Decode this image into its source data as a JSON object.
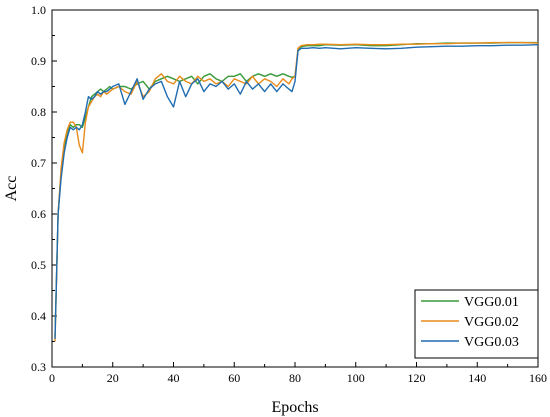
{
  "chart_data": {
    "type": "line",
    "title": "",
    "xlabel": "Epochs",
    "ylabel": "Acc",
    "xlim": [
      0,
      160
    ],
    "ylim": [
      0.3,
      1.0
    ],
    "xticks": [
      "0",
      "20",
      "40",
      "60",
      "80",
      "100",
      "120",
      "140",
      "160"
    ],
    "yticks": [
      "0.3",
      "0.4",
      "0.5",
      "0.6",
      "0.7",
      "0.8",
      "0.9",
      "1.0"
    ],
    "grid": false,
    "legend_position": "bottom-right",
    "x": [
      1,
      2,
      3,
      4,
      5,
      6,
      7,
      8,
      9,
      10,
      11,
      12,
      13,
      14,
      15,
      16,
      17,
      18,
      19,
      20,
      22,
      24,
      26,
      28,
      30,
      32,
      34,
      36,
      38,
      40,
      42,
      44,
      46,
      48,
      50,
      52,
      54,
      56,
      58,
      60,
      62,
      64,
      66,
      68,
      70,
      72,
      74,
      76,
      78,
      79,
      80,
      81,
      82,
      84,
      86,
      88,
      90,
      95,
      100,
      105,
      110,
      115,
      120,
      125,
      130,
      135,
      140,
      145,
      150,
      155,
      160
    ],
    "series": [
      {
        "name": "VGG0.01",
        "color": "#3a9a3a",
        "values": [
          0.36,
          0.6,
          0.68,
          0.73,
          0.76,
          0.775,
          0.77,
          0.775,
          0.775,
          0.77,
          0.79,
          0.81,
          0.83,
          0.835,
          0.84,
          0.845,
          0.84,
          0.845,
          0.85,
          0.845,
          0.85,
          0.85,
          0.845,
          0.855,
          0.86,
          0.845,
          0.86,
          0.865,
          0.87,
          0.865,
          0.86,
          0.865,
          0.87,
          0.855,
          0.87,
          0.875,
          0.865,
          0.86,
          0.87,
          0.87,
          0.875,
          0.86,
          0.87,
          0.875,
          0.87,
          0.875,
          0.87,
          0.875,
          0.87,
          0.868,
          0.87,
          0.92,
          0.928,
          0.93,
          0.93,
          0.93,
          0.932,
          0.931,
          0.932,
          0.93,
          0.93,
          0.932,
          0.934,
          0.934,
          0.935,
          0.935,
          0.935,
          0.935,
          0.936,
          0.936,
          0.936
        ]
      },
      {
        "name": "VGG0.02",
        "color": "#e88a1a",
        "values": [
          0.35,
          0.6,
          0.69,
          0.74,
          0.765,
          0.78,
          0.78,
          0.77,
          0.735,
          0.72,
          0.78,
          0.81,
          0.82,
          0.83,
          0.835,
          0.83,
          0.84,
          0.835,
          0.84,
          0.845,
          0.85,
          0.84,
          0.835,
          0.86,
          0.83,
          0.84,
          0.865,
          0.875,
          0.86,
          0.855,
          0.87,
          0.86,
          0.855,
          0.87,
          0.86,
          0.865,
          0.855,
          0.86,
          0.85,
          0.865,
          0.86,
          0.855,
          0.87,
          0.855,
          0.865,
          0.86,
          0.85,
          0.865,
          0.855,
          0.865,
          0.87,
          0.925,
          0.93,
          0.932,
          0.932,
          0.933,
          0.933,
          0.932,
          0.933,
          0.932,
          0.932,
          0.933,
          0.933,
          0.934,
          0.934,
          0.935,
          0.935,
          0.936,
          0.936,
          0.936,
          0.935
        ]
      },
      {
        "name": "VGG0.03",
        "color": "#1f6cb0",
        "values": [
          0.355,
          0.6,
          0.67,
          0.72,
          0.75,
          0.77,
          0.765,
          0.77,
          0.765,
          0.775,
          0.8,
          0.83,
          0.825,
          0.83,
          0.84,
          0.835,
          0.84,
          0.84,
          0.845,
          0.85,
          0.855,
          0.815,
          0.84,
          0.865,
          0.825,
          0.845,
          0.855,
          0.86,
          0.83,
          0.81,
          0.86,
          0.83,
          0.855,
          0.865,
          0.84,
          0.855,
          0.85,
          0.86,
          0.845,
          0.855,
          0.835,
          0.86,
          0.845,
          0.855,
          0.84,
          0.855,
          0.84,
          0.855,
          0.845,
          0.84,
          0.86,
          0.92,
          0.925,
          0.925,
          0.926,
          0.925,
          0.926,
          0.924,
          0.926,
          0.925,
          0.924,
          0.925,
          0.927,
          0.928,
          0.929,
          0.929,
          0.93,
          0.93,
          0.931,
          0.931,
          0.932
        ]
      }
    ]
  }
}
